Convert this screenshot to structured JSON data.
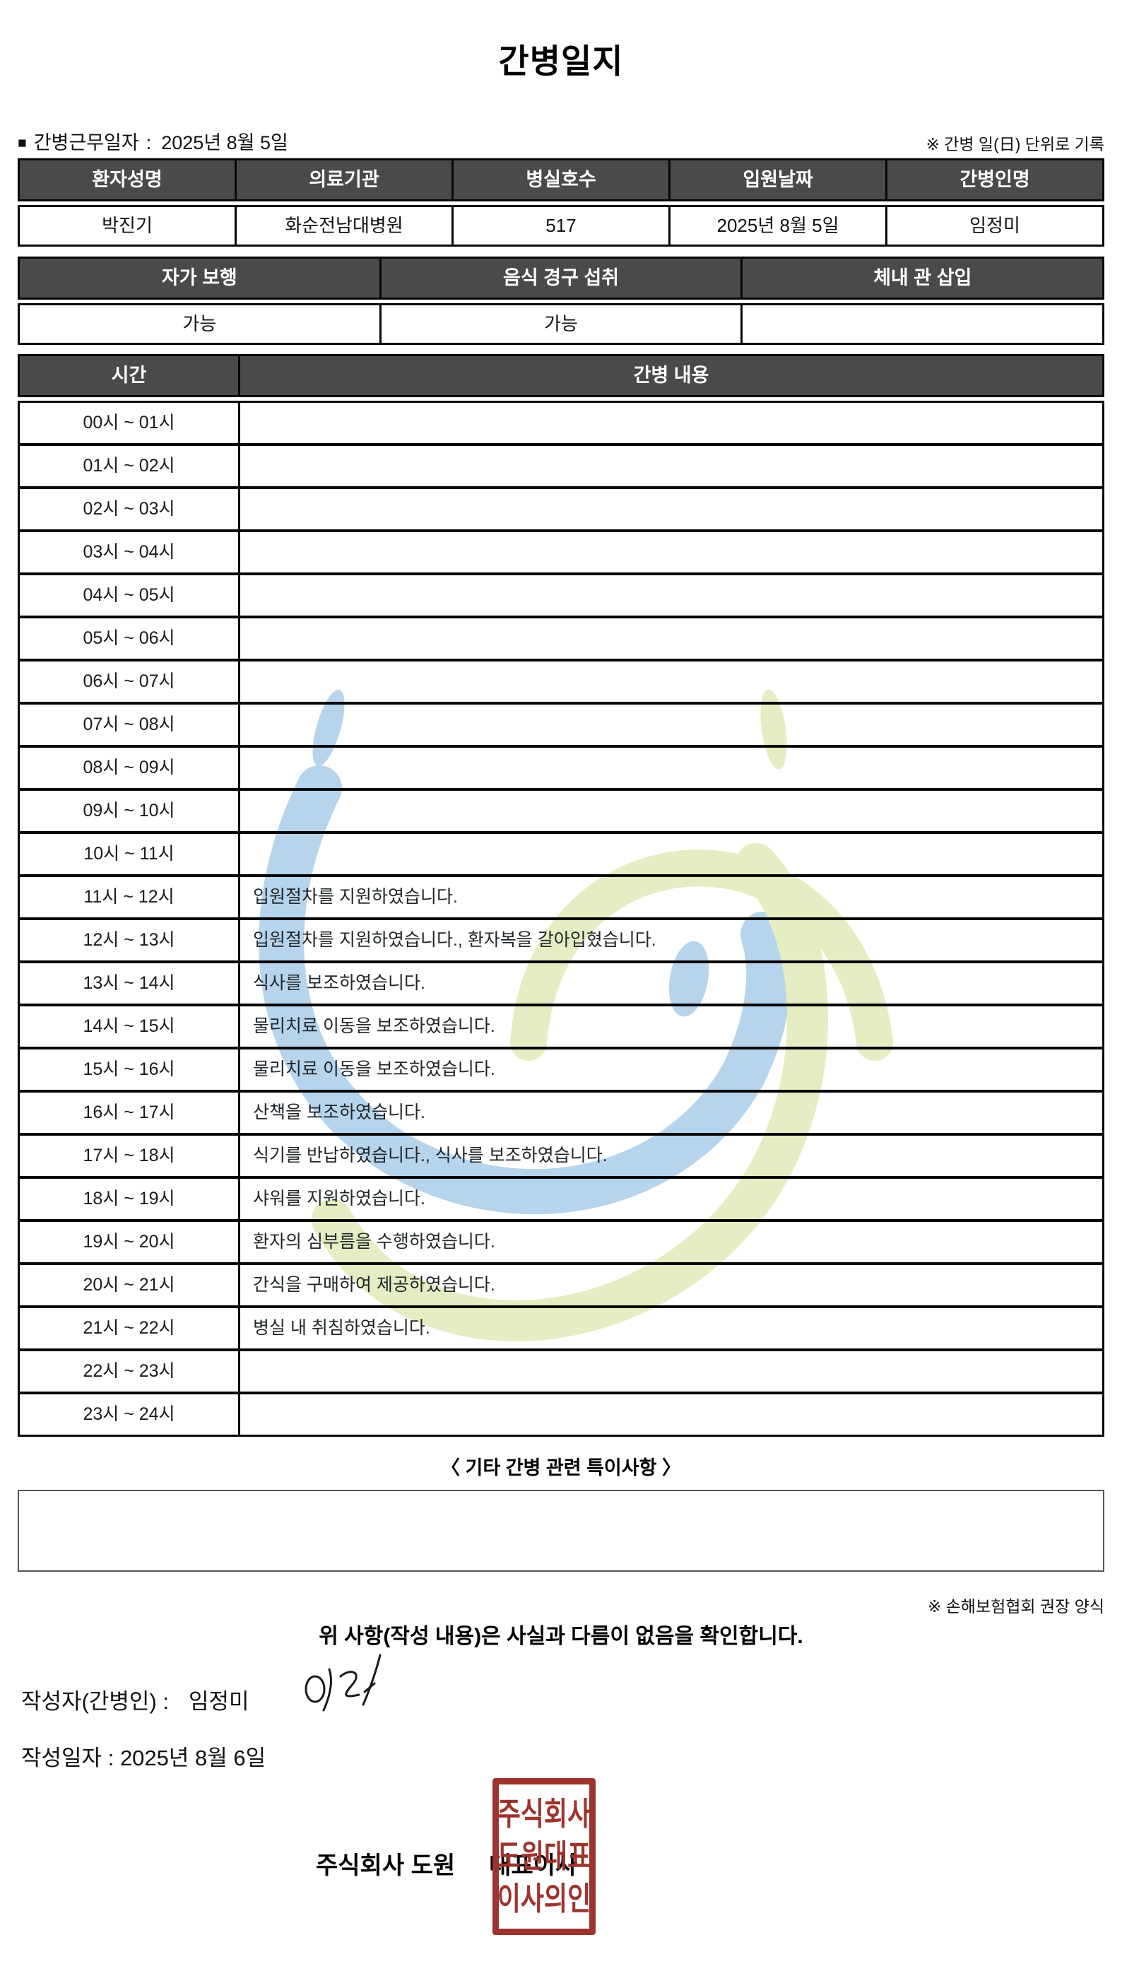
{
  "title": "간병일지",
  "meta": {
    "work_date_label": "간병근무일자",
    "work_date_separator": ":",
    "work_date": "2025년 8월 5일",
    "unit_note": "※ 간병 일(日) 단위로 기록"
  },
  "patient_table": {
    "headers": [
      "환자성명",
      "의료기관",
      "병실호수",
      "입원날짜",
      "간병인명"
    ],
    "values": [
      "박진기",
      "화순전남대병원",
      "517",
      "2025년 8월 5일",
      "임정미"
    ]
  },
  "condition_table": {
    "headers": [
      "자가 보행",
      "음식 경구 섭취",
      "체내 관 삽입"
    ],
    "values": [
      "가능",
      "가능",
      ""
    ]
  },
  "care_log": {
    "time_header": "시간",
    "content_header": "간병 내용",
    "rows": [
      {
        "time": "00시 ~ 01시",
        "content": ""
      },
      {
        "time": "01시 ~ 02시",
        "content": ""
      },
      {
        "time": "02시 ~ 03시",
        "content": ""
      },
      {
        "time": "03시 ~ 04시",
        "content": ""
      },
      {
        "time": "04시 ~ 05시",
        "content": ""
      },
      {
        "time": "05시 ~ 06시",
        "content": ""
      },
      {
        "time": "06시 ~ 07시",
        "content": ""
      },
      {
        "time": "07시 ~ 08시",
        "content": ""
      },
      {
        "time": "08시 ~ 09시",
        "content": ""
      },
      {
        "time": "09시 ~ 10시",
        "content": ""
      },
      {
        "time": "10시 ~ 11시",
        "content": ""
      },
      {
        "time": "11시 ~ 12시",
        "content": "입원절차를 지원하였습니다."
      },
      {
        "time": "12시 ~ 13시",
        "content": "입원절차를 지원하였습니다., 환자복을 갈아입혔습니다."
      },
      {
        "time": "13시 ~ 14시",
        "content": "식사를 보조하였습니다."
      },
      {
        "time": "14시 ~ 15시",
        "content": "물리치료 이동을 보조하였습니다."
      },
      {
        "time": "15시 ~ 16시",
        "content": "물리치료 이동을 보조하였습니다."
      },
      {
        "time": "16시 ~ 17시",
        "content": "산책을 보조하였습니다."
      },
      {
        "time": "17시 ~ 18시",
        "content": "식기를 반납하였습니다., 식사를 보조하였습니다."
      },
      {
        "time": "18시 ~ 19시",
        "content": "샤워를 지원하였습니다."
      },
      {
        "time": "19시 ~ 20시",
        "content": "환자의 심부름을 수행하였습니다."
      },
      {
        "time": "20시 ~ 21시",
        "content": "간식을 구매하여 제공하였습니다."
      },
      {
        "time": "21시 ~ 22시",
        "content": "병실 내 취침하였습니다."
      },
      {
        "time": "22시 ~ 23시",
        "content": ""
      },
      {
        "time": "23시 ~ 24시",
        "content": ""
      }
    ]
  },
  "notes_section": {
    "heading": "〈 기타 간병 관련 특이사항 〉",
    "content": "",
    "form_note": "※ 손해보험협회 권장 양식"
  },
  "footer": {
    "confirmation": "위 사항(작성 내용)은 사실과 다름이 없음을 확인합니다.",
    "writer_label": "작성자(간병인) :",
    "writer_name": "임정미",
    "date_label": "작성일자 :",
    "date_value": "2025년 8월 6일",
    "company": "주식회사 도원",
    "ceo_title": "대표이사",
    "stamp_lines": [
      "주식회사",
      "도원대표",
      "이사의인"
    ]
  },
  "colors": {
    "header_bg": "#4a4a4b",
    "stamp_red": "#9d332c",
    "watermark_blue": "#aed0ea",
    "watermark_green": "#e3ebbc"
  }
}
